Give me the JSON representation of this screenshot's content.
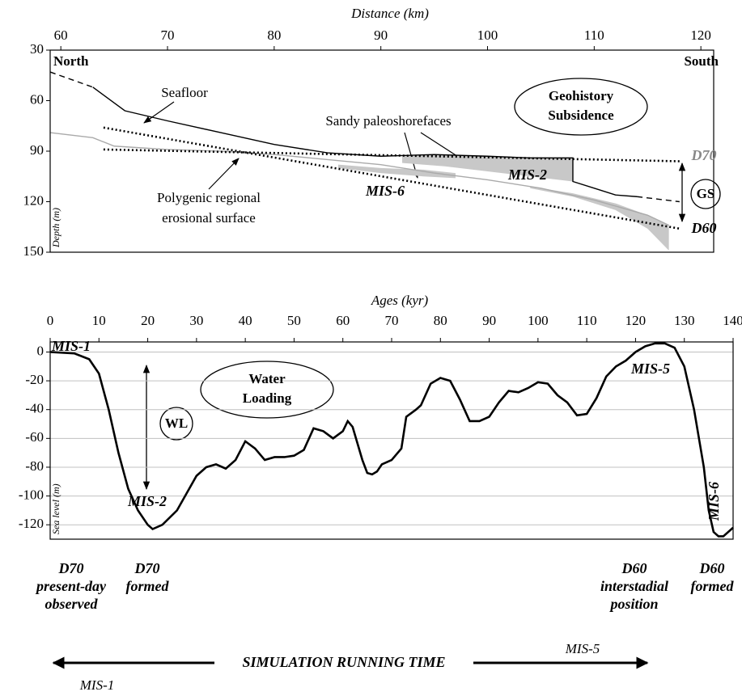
{
  "chart_data": [
    {
      "type": "line",
      "title": "Distance (km)",
      "y_label": "Depth (m)",
      "xlim": [
        59,
        121.2
      ],
      "xticks": [
        60,
        70,
        80,
        90,
        100,
        110,
        120
      ],
      "ylim": [
        30,
        150
      ],
      "yticks": [
        30,
        60,
        90,
        120,
        150
      ],
      "y_inverted": true,
      "grid": false,
      "series": [
        {
          "style": "area",
          "color": "#c8c8c8",
          "x": [
            92,
            96,
            100,
            104,
            108
          ],
          "values": [
            93,
            92,
            93,
            94,
            94
          ],
          "base": [
            97,
            99,
            102,
            105,
            108
          ]
        },
        {
          "style": "area",
          "color": "#c8c8c8",
          "x": [
            86,
            90,
            94,
            97
          ],
          "values": [
            98,
            100,
            101,
            103
          ],
          "base": [
            100,
            103,
            105,
            106
          ]
        },
        {
          "style": "area",
          "color": "#c8c8c8",
          "x": [
            104,
            108,
            112,
            115,
            117
          ],
          "values": [
            111,
            115,
            121,
            128,
            134
          ],
          "base": [
            112,
            117,
            125,
            136,
            149
          ]
        },
        {
          "style": "line",
          "color": "#aaaaaa",
          "x": [
            59,
            63,
            65,
            70,
            75,
            80,
            85,
            90,
            95,
            100,
            105,
            110,
            115,
            117
          ],
          "values": [
            79,
            82,
            87,
            89,
            90,
            92,
            95,
            98,
            103,
            107,
            112,
            119,
            128,
            134
          ]
        },
        {
          "style": "dashed",
          "color": "#000000",
          "x": [
            59,
            63
          ],
          "values": [
            43,
            52
          ]
        },
        {
          "style": "line",
          "color": "#000000",
          "x": [
            63,
            66,
            70,
            75,
            80,
            85,
            90,
            95,
            100,
            104,
            108,
            108,
            110,
            112,
            114
          ],
          "values": [
            52,
            66,
            72,
            79,
            86,
            91,
            93,
            92,
            93,
            94,
            94,
            108,
            112,
            116,
            117
          ]
        },
        {
          "style": "dashed",
          "color": "#000000",
          "x": [
            114,
            118
          ],
          "values": [
            117,
            120
          ]
        },
        {
          "style": "dotted",
          "color": "#000000",
          "x": [
            64,
            118
          ],
          "values": [
            89,
            96
          ]
        },
        {
          "style": "dotted",
          "color": "#000000",
          "x": [
            64,
            118
          ],
          "values": [
            76,
            136
          ]
        }
      ],
      "notes": {
        "north": "North",
        "south": "South",
        "seafloor": "Seafloor",
        "sandy": "Sandy paleoshorefaces",
        "geohistory": [
          "Geohistory",
          "Subsidence"
        ],
        "d70": "D70",
        "d60": "D60",
        "gs": "GS",
        "mis2": "MIS-2",
        "mis6": "MIS-6",
        "erosional": [
          "Polygenic regional",
          "erosional surface"
        ]
      }
    },
    {
      "type": "line",
      "title": "Ages (kyr)",
      "y_label": "Sea level (m)",
      "xlim": [
        0,
        140
      ],
      "xticks": [
        0,
        10,
        20,
        30,
        40,
        50,
        60,
        70,
        80,
        90,
        100,
        110,
        120,
        130,
        140
      ],
      "ylim": [
        -130,
        7
      ],
      "yticks": [
        0,
        -20,
        -40,
        -60,
        -80,
        -100,
        -120
      ],
      "grid": true,
      "series": [
        {
          "style": "line",
          "color": "#000000",
          "x": [
            0,
            5,
            8,
            10,
            12,
            14,
            16,
            18,
            20,
            21,
            23,
            26,
            28,
            30,
            32,
            34,
            36,
            38,
            40,
            42,
            44,
            46,
            48,
            50,
            52,
            54,
            56,
            58,
            60,
            61,
            62,
            64,
            65,
            66,
            67,
            68,
            70,
            72,
            73,
            75,
            76,
            78,
            80,
            82,
            84,
            86,
            88,
            90,
            92,
            94,
            96,
            98,
            100,
            102,
            104,
            106,
            108,
            110,
            112,
            114,
            116,
            118,
            120,
            122,
            124,
            126,
            128,
            130,
            132,
            134,
            135,
            136,
            137,
            138,
            140
          ],
          "values": [
            0,
            -1,
            -5,
            -15,
            -40,
            -70,
            -95,
            -110,
            -120,
            -123,
            -120,
            -110,
            -98,
            -86,
            -80,
            -78,
            -81,
            -75,
            -62,
            -67,
            -75,
            -73,
            -73,
            -72,
            -68,
            -53,
            -55,
            -60,
            -55,
            -48,
            -52,
            -75,
            -84,
            -85,
            -83,
            -78,
            -75,
            -67,
            -45,
            -40,
            -37,
            -22,
            -18,
            -20,
            -33,
            -48,
            -48,
            -45,
            -35,
            -27,
            -28,
            -25,
            -21,
            -22,
            -30,
            -35,
            -44,
            -43,
            -32,
            -17,
            -10,
            -6,
            0,
            4,
            6,
            6,
            3,
            -10,
            -40,
            -80,
            -110,
            -125,
            -128,
            -128,
            -122
          ]
        }
      ],
      "notes": {
        "mis1": "MIS-1",
        "water": [
          "Water",
          "Loading"
        ],
        "wl": "WL",
        "mis2": "MIS-2",
        "mis5": "MIS-5",
        "mis6": "MIS-6",
        "d70_observed": [
          "D70",
          "present-day",
          "observed"
        ],
        "d70_formed": [
          "D70",
          "formed"
        ],
        "d60_interstadial": [
          "D60",
          "interstadial",
          "position"
        ],
        "d60_formed": [
          "D60",
          "formed"
        ],
        "running": "SIMULATION RUNNING TIME",
        "arrow_mis5": "MIS-5",
        "arrow_mis1": "MIS-1"
      }
    }
  ]
}
